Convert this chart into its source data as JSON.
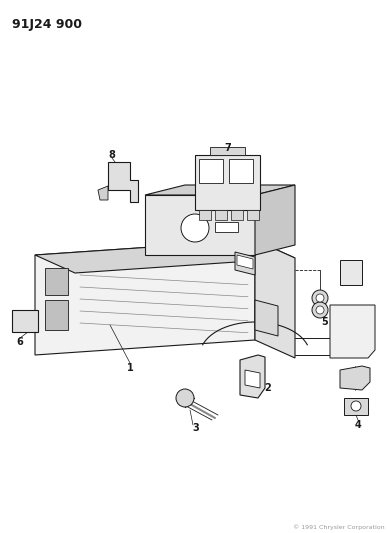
{
  "title": "91J24 900",
  "bg_color": "#ffffff",
  "line_color": "#1a1a1a",
  "fig_width": 3.89,
  "fig_height": 5.33,
  "dpi": 100,
  "gray_light": "#c8c8c8",
  "gray_mid": "#a0a0a0",
  "gray_dark": "#707070",
  "gray_fill": "#e8e8e8",
  "watermark_text": "© 1991 Chrysler Corporation"
}
